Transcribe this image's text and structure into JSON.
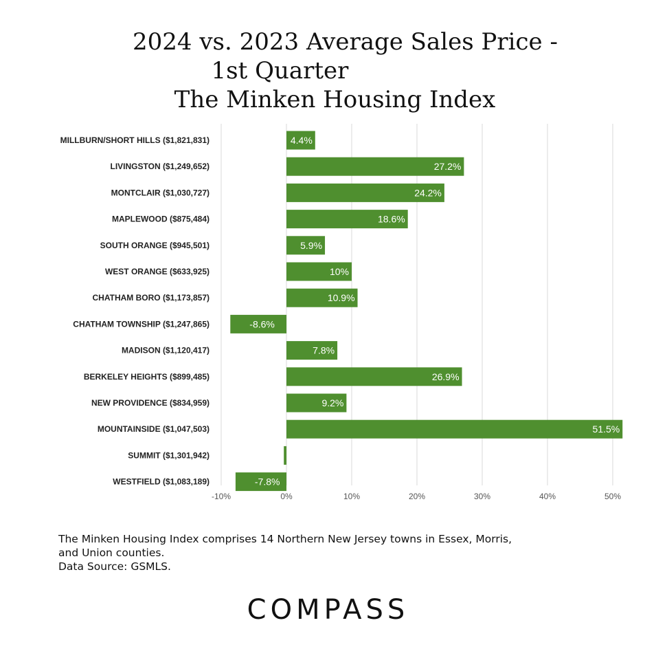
{
  "title": {
    "line1": "2024 vs. 2023 Average Sales Price -",
    "line2": "1st Quarter",
    "line3": "The Minken Housing Index"
  },
  "chart_data": {
    "type": "bar",
    "orientation": "horizontal",
    "categories": [
      "MILLBURN/SHORT HILLS ($1,821,831)",
      "LIVINGSTON ($1,249,652)",
      "MONTCLAIR ($1,030,727)",
      "MAPLEWOOD ($875,484)",
      "SOUTH ORANGE ($945,501)",
      "WEST ORANGE ($633,925)",
      "CHATHAM BORO ($1,173,857)",
      "CHATHAM TOWNSHIP ($1,247,865)",
      "MADISON ($1,120,417)",
      "BERKELEY HEIGHTS ($899,485)",
      "NEW PROVIDENCE ($834,959)",
      "MOUNTAINSIDE ($1,047,503)",
      "SUMMIT ($1,301,942)",
      "WESTFIELD ($1,083,189)"
    ],
    "values": [
      4.4,
      27.2,
      24.2,
      18.6,
      5.9,
      10,
      10.9,
      -8.6,
      7.8,
      26.9,
      9.2,
      51.5,
      -0.4,
      -7.8
    ],
    "data_labels": [
      "4.4%",
      "27.2%",
      "24.2%",
      "18.6%",
      "5.9%",
      "10%",
      "10.9%",
      "-8.6%",
      "7.8%",
      "26.9%",
      "9.2%",
      "51.5%",
      "",
      "-7.8%"
    ],
    "xlim": [
      -10,
      50
    ],
    "xticks": [
      -10,
      0,
      10,
      20,
      30,
      40,
      50
    ],
    "xtick_labels": [
      "-10%",
      "0%",
      "10%",
      "20%",
      "30%",
      "40%",
      "50%"
    ],
    "grid": "vertical",
    "bar_color": "#4f8f2f",
    "grid_color": "#d9d9d9"
  },
  "footnote": {
    "line1": "The Minken Housing Index comprises 14 Northern New Jersey towns in Essex, Morris,",
    "line2": "and Union counties.",
    "line3": "Data Source: GSMLS."
  },
  "logo": {
    "text": "COMPASS"
  }
}
